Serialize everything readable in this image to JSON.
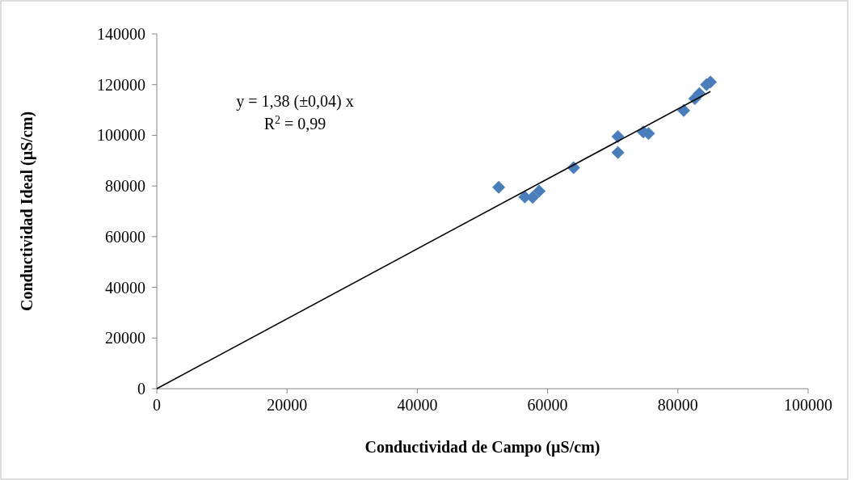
{
  "chart_data": {
    "type": "scatter",
    "xlabel": "Conductividad de Campo (µS/cm)",
    "ylabel": "Conductividad Ideal (µS/cm)",
    "xlim": [
      0,
      100000
    ],
    "ylim": [
      0,
      140000
    ],
    "xticks": [
      0,
      20000,
      40000,
      60000,
      80000,
      100000
    ],
    "yticks": [
      0,
      20000,
      40000,
      60000,
      80000,
      100000,
      120000,
      140000
    ],
    "grid": false,
    "marker": "diamond",
    "annotations": [
      "y = 1,38 (±0,04) x",
      "R$^{2}$ = 0,99"
    ],
    "series": [
      {
        "color": "#4a7ebb",
        "x": [
          52500,
          56500,
          57700,
          58700,
          64000,
          70800,
          70800,
          74700,
          75500,
          80900,
          82600,
          83300,
          84400,
          85000
        ],
        "values": [
          79500,
          75700,
          75500,
          78000,
          87200,
          99500,
          93200,
          101300,
          100700,
          109800,
          114500,
          116500,
          120000,
          121000
        ]
      },
      {
        "type": "line",
        "color": "#000000",
        "line_style": "solid",
        "marker": "none",
        "x": [
          0,
          85000
        ],
        "values": [
          0,
          117300
        ]
      }
    ]
  }
}
